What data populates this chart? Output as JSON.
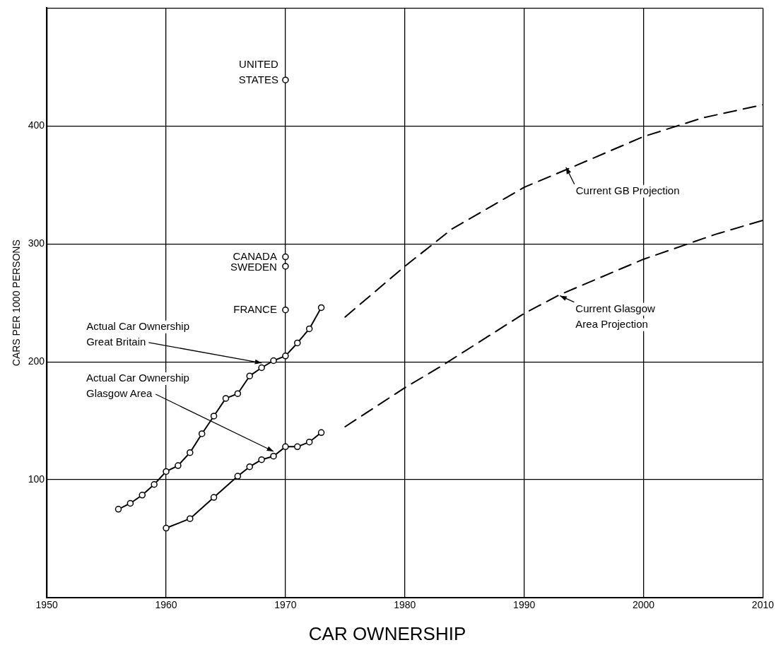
{
  "chart_data": {
    "type": "line",
    "title": "CAR OWNERSHIP",
    "ylabel": "CARS PER 1000 PERSONS",
    "xlim": [
      1950,
      2010
    ],
    "xticks": [
      1950,
      1960,
      1970,
      1980,
      1990,
      2000,
      2010
    ],
    "ylim": [
      0,
      500
    ],
    "yticks": [
      {
        "value": 0,
        "label": null
      },
      100,
      200,
      300,
      400,
      {
        "value": 500,
        "label": null
      }
    ],
    "grid": true,
    "legend": false,
    "series": [
      {
        "type": "line",
        "color": "#000000",
        "marker": "circle",
        "line_style": "solid",
        "x": [
          1956,
          1957,
          1958,
          1959,
          1960,
          1961,
          1962,
          1963,
          1964,
          1965,
          1966,
          1967,
          1968,
          1969,
          1970,
          1971,
          1972,
          1973
        ],
        "values": [
          75,
          80,
          87,
          96,
          107,
          112,
          123,
          139,
          154,
          169,
          173,
          188,
          195,
          201,
          205,
          216,
          228,
          246
        ]
      },
      {
        "type": "line",
        "color": "#000000",
        "marker": "circle",
        "line_style": "solid",
        "x": [
          1960,
          1962,
          1964,
          1966,
          1967,
          1968,
          1969,
          1970,
          1971,
          1972,
          1973
        ],
        "values": [
          59,
          67,
          85,
          103,
          111,
          117,
          120,
          128,
          128,
          132,
          140
        ]
      },
      {
        "type": "line",
        "color": "#000000",
        "marker": "none",
        "line_style": "dashed",
        "x": [
          1975,
          1980,
          1984,
          1990,
          1994,
          2000,
          2005,
          2010
        ],
        "values": [
          238,
          281,
          313,
          348,
          365,
          391,
          407,
          418
        ]
      },
      {
        "type": "line",
        "color": "#000000",
        "marker": "none",
        "line_style": "dashed",
        "x": [
          1975,
          1980,
          1983,
          1990,
          1993,
          2000,
          2006,
          2010
        ],
        "values": [
          145,
          178,
          196,
          241,
          257,
          287,
          308,
          320
        ]
      },
      {
        "type": "scatter",
        "color": "#000000",
        "marker": "circle",
        "x": [
          1970,
          1970,
          1970,
          1970
        ],
        "values": [
          439,
          289,
          281,
          244
        ]
      }
    ],
    "annotations": [
      {
        "text": "UNITED\nSTATES",
        "x": 1970,
        "y": 439
      },
      {
        "text": "CANADA",
        "x": 1970,
        "y": 289
      },
      {
        "text": "SWEDEN",
        "x": 1970,
        "y": 281
      },
      {
        "text": "FRANCE",
        "x": 1970,
        "y": 244
      },
      {
        "text": "Actual Car Ownership\nGreat Britain",
        "x": 1968,
        "y": 199
      },
      {
        "text": "Actual Car Ownership\nGlasgow Area",
        "x": 1969,
        "y": 124
      },
      {
        "text": "Current GB Projection",
        "x": 1993.5,
        "y": 365
      },
      {
        "text": "Current Glasgow\nArea Projection",
        "x": 1993,
        "y": 256
      }
    ]
  }
}
